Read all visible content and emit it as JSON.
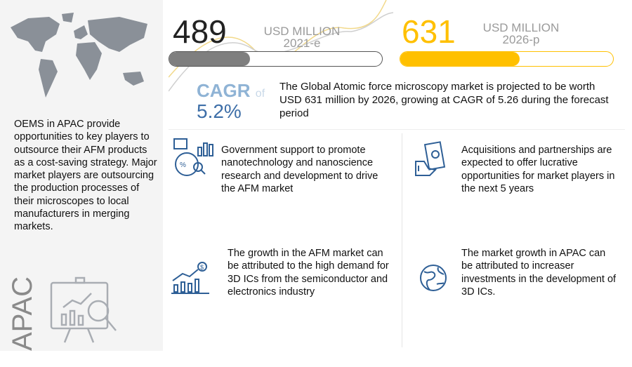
{
  "left_panel": {
    "text": "OEMS in APAC provide opportunities to key players to outsource their AFM products as a cost-saving strategy. Major market players are outsourcing the production processes of their microscopes to local manufacturers in merging markets.",
    "region": "APAC"
  },
  "stats": [
    {
      "value": "489",
      "unit": "USD MILLION",
      "year": "2021-e",
      "progress": 0.38,
      "color": "#7f7f7f"
    },
    {
      "value": "631",
      "unit": "USD MILLION",
      "year": "2026-p",
      "progress": 0.56,
      "color": "#ffc000"
    }
  ],
  "cagr": {
    "label": "CAGR",
    "of": "of",
    "value": "5.2%"
  },
  "summary": "The Global Atomic force microscopy market is projected to be worth USD 631 million by 2026, growing at CAGR of 5.26 during the forecast period",
  "cards": [
    {
      "icon": "policy-chart-icon",
      "text": "Government support to promote nanotechnology and nanoscience research and development to drive the AFM market"
    },
    {
      "icon": "money-handshake-icon",
      "text": "Acquisitions and partnerships are expected to offer lucrative opportunities for market players in the next 5 years"
    },
    {
      "icon": "growth-bar-chart-icon",
      "text": "The growth in the AFM market can be attributed to the high demand for 3D ICs from the semiconductor and electronics industry"
    },
    {
      "icon": "globe-icon",
      "text": "The market growth in APAC can be attributed to increaser investments in the development of 3D ICs."
    }
  ]
}
